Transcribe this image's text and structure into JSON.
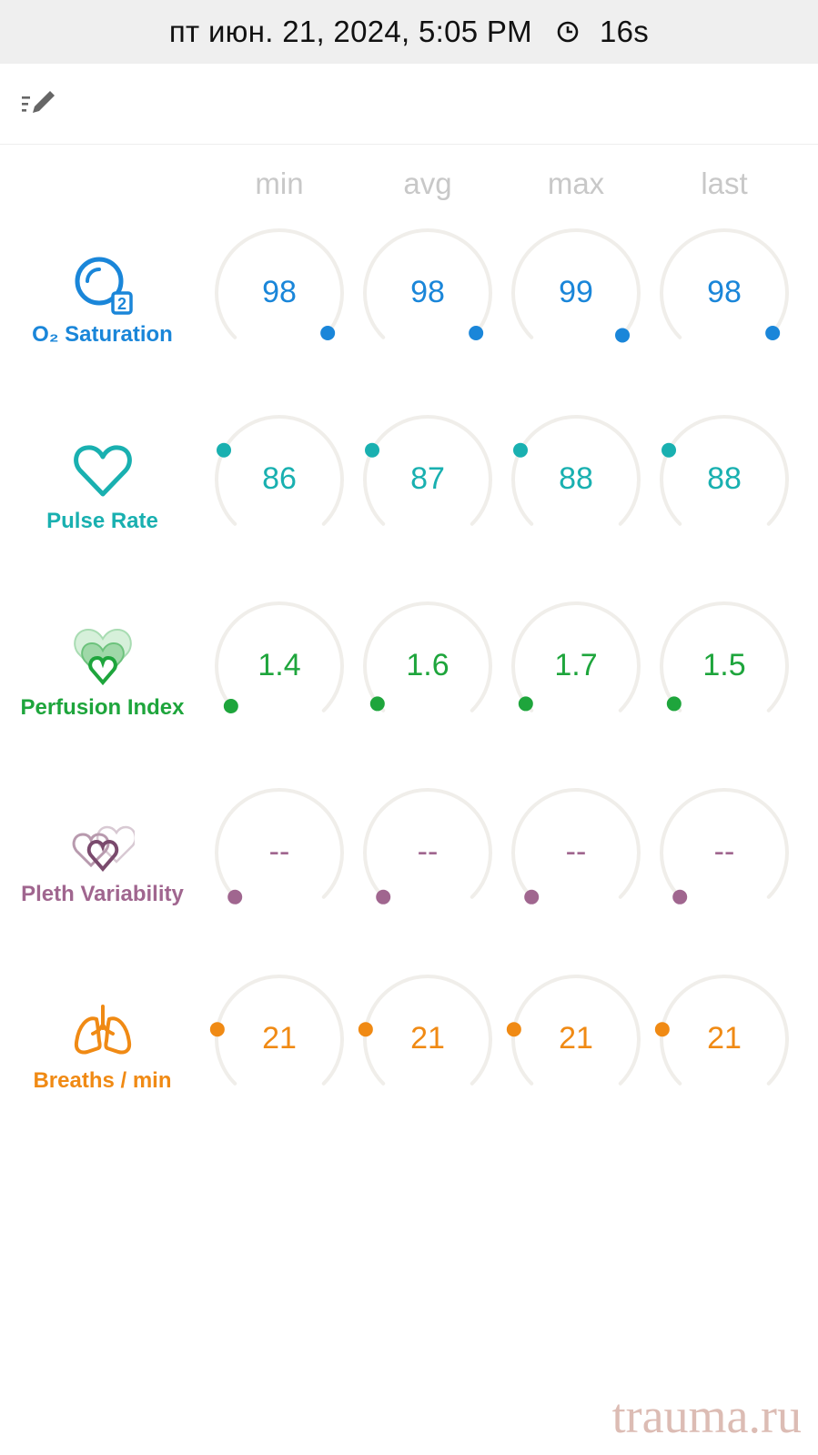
{
  "status": {
    "datetime": "пт июн. 21, 2024, 5:05 PM",
    "duration": "16s"
  },
  "columns": [
    "min",
    "avg",
    "max",
    "last"
  ],
  "metrics": [
    {
      "id": "o2",
      "label": "O₂ Saturation",
      "icon": "o2-saturation-icon",
      "color": "#1a86d9",
      "values": [
        {
          "text": "98",
          "level": 0.98
        },
        {
          "text": "98",
          "level": 0.98
        },
        {
          "text": "99",
          "level": 0.99
        },
        {
          "text": "98",
          "level": 0.98
        }
      ]
    },
    {
      "id": "pulse",
      "label": "Pulse Rate",
      "icon": "heart-icon",
      "color": "#19b0b0",
      "values": [
        {
          "text": "86",
          "level": 0.27
        },
        {
          "text": "87",
          "level": 0.27
        },
        {
          "text": "88",
          "level": 0.27
        },
        {
          "text": "88",
          "level": 0.27
        }
      ]
    },
    {
      "id": "pi",
      "label": "Perfusion Index",
      "icon": "perfusion-index-icon",
      "color": "#1ea53c",
      "values": [
        {
          "text": "1.4",
          "level": 0.02
        },
        {
          "text": "1.6",
          "level": 0.03
        },
        {
          "text": "1.7",
          "level": 0.03
        },
        {
          "text": "1.5",
          "level": 0.03
        }
      ]
    },
    {
      "id": "pvi",
      "label": "Pleth Variability",
      "icon": "pleth-variability-icon",
      "color": "#a0668f",
      "values": [
        {
          "text": "--",
          "level": 0.0
        },
        {
          "text": "--",
          "level": 0.0
        },
        {
          "text": "--",
          "level": 0.0
        },
        {
          "text": "--",
          "level": 0.0
        }
      ]
    },
    {
      "id": "rr",
      "label": "Breaths / min",
      "icon": "lungs-icon",
      "color": "#f08a14",
      "values": [
        {
          "text": "21",
          "level": 0.2
        },
        {
          "text": "21",
          "level": 0.2
        },
        {
          "text": "21",
          "level": 0.2
        },
        {
          "text": "21",
          "level": 0.2
        }
      ]
    }
  ],
  "watermark": "trauma.ru",
  "colors": {
    "track": "#f0eeea",
    "header_text": "#c8c8c8"
  }
}
